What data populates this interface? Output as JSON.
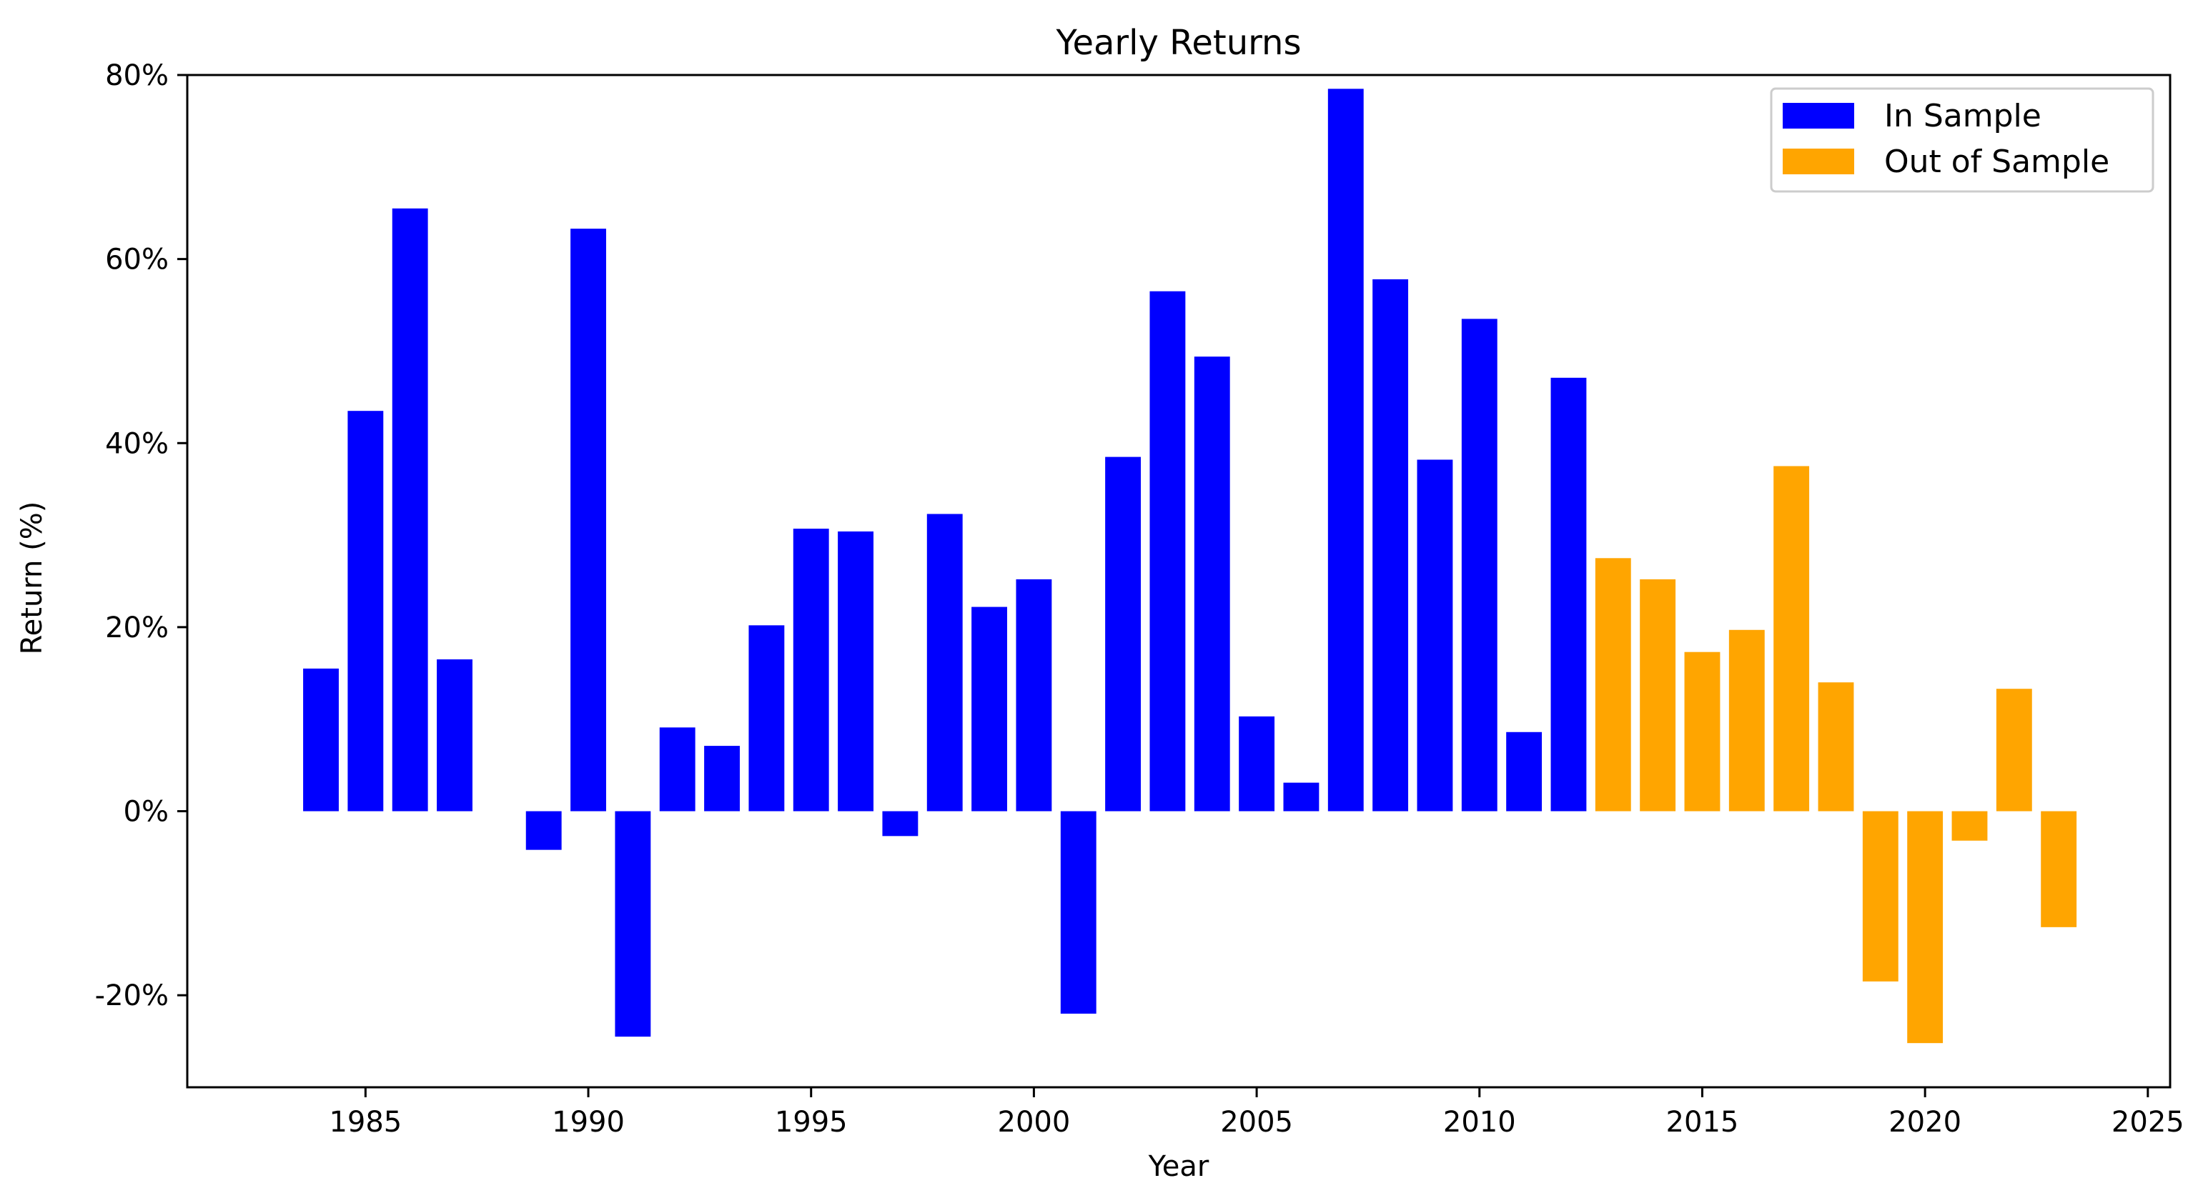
{
  "chart_data": {
    "type": "bar",
    "title": "Yearly Returns",
    "xlabel": "Year",
    "ylabel": "Return (%)",
    "xlim": [
      1981,
      2025.5
    ],
    "ylim": [
      -30,
      80
    ],
    "x_ticks": [
      1985,
      1990,
      1995,
      2000,
      2005,
      2010,
      2015,
      2020,
      2025
    ],
    "x_tick_labels": [
      "1985",
      "1990",
      "1995",
      "2000",
      "2005",
      "2010",
      "2015",
      "2020",
      "2025"
    ],
    "y_ticks": [
      -20,
      0,
      20,
      40,
      60,
      80
    ],
    "y_tick_labels": [
      "-20%",
      "0%",
      "20%",
      "40%",
      "60%",
      "80%"
    ],
    "grid": false,
    "legend_position": "top-right",
    "series": [
      {
        "name": "In Sample",
        "color": "#0000ff",
        "x": [
          1984,
          1985,
          1986,
          1987,
          1988,
          1989,
          1990,
          1991,
          1992,
          1993,
          1994,
          1995,
          1996,
          1997,
          1998,
          1999,
          2000,
          2001,
          2002,
          2003,
          2004,
          2005,
          2006,
          2007,
          2008,
          2009,
          2010,
          2011,
          2012
        ],
        "values": [
          15.5,
          43.5,
          65.5,
          16.5,
          0,
          -4.2,
          63.3,
          -24.5,
          9.1,
          7.1,
          20.2,
          30.7,
          30.4,
          -2.7,
          32.3,
          22.2,
          25.2,
          -22.0,
          38.5,
          56.5,
          49.4,
          10.3,
          3.1,
          78.5,
          57.8,
          38.2,
          53.5,
          8.6,
          47.1
        ]
      },
      {
        "name": "Out of Sample",
        "color": "#ffa500",
        "x": [
          2013,
          2014,
          2015,
          2016,
          2017,
          2018,
          2019,
          2020,
          2021,
          2022,
          2023
        ],
        "values": [
          27.5,
          25.2,
          17.3,
          19.7,
          37.5,
          14.0,
          -18.5,
          -25.2,
          -3.2,
          13.3,
          -12.6
        ]
      }
    ]
  }
}
